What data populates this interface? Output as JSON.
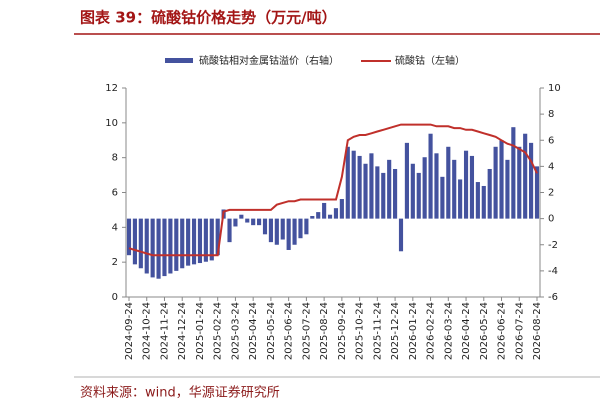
{
  "chart_data": {
    "type": "bar-line",
    "title": "图表 39：硫酸钴价格走势（万元/吨）",
    "source": "资料来源：wind，华源证券研究所",
    "categories": [
      "2024-09-24",
      null,
      null,
      "2024-10-24",
      null,
      null,
      "2024-11-24",
      null,
      null,
      "2024-12-24",
      null,
      null,
      "2025-01-24",
      null,
      null,
      "2025-02-24",
      null,
      null,
      "2025-03-24",
      null,
      null,
      "2025-04-24",
      null,
      null,
      "2025-05-24",
      null,
      null,
      "2025-06-24",
      null,
      null,
      "2025-07-24",
      null,
      null,
      "2025-08-24",
      null,
      null,
      "2025-09-24",
      null,
      null,
      "2025-10-24",
      null,
      null,
      "2025-11-24",
      null,
      null,
      "2025-12-24",
      null,
      null,
      "2026-01-24",
      null,
      null,
      "2026-02-24",
      null,
      null,
      "2026-03-24",
      null,
      null,
      "2026-04-24",
      null,
      null,
      "2026-05-24",
      null,
      null,
      "2026-06-24",
      null,
      null,
      "2026-07-24",
      null,
      null,
      "2026-08-24"
    ],
    "series": [
      {
        "name": "硫酸钴相对金属钴溢价（右轴）",
        "type": "bar",
        "axis": "y2",
        "color": "#44529e",
        "values": [
          -2.8,
          -3.5,
          -3.8,
          -4.2,
          -4.5,
          -4.6,
          -4.4,
          -4.2,
          -4.0,
          -3.8,
          -3.6,
          -3.5,
          -3.4,
          -3.3,
          -3.2,
          -2.8,
          0.7,
          -1.8,
          -0.6,
          0.3,
          -0.3,
          -0.5,
          -0.5,
          -1.2,
          -1.8,
          -2.0,
          -1.6,
          -2.4,
          -2.0,
          -1.5,
          -1.2,
          0.2,
          0.5,
          1.2,
          0.3,
          0.8,
          1.5,
          5.5,
          5.2,
          4.8,
          4.2,
          5.0,
          4.0,
          3.5,
          4.5,
          3.8,
          -2.5,
          5.8,
          4.2,
          3.5,
          4.7,
          6.5,
          5.0,
          3.2,
          5.5,
          4.5,
          3.0,
          5.2,
          4.8,
          2.8,
          2.5,
          3.8,
          5.5,
          6.0,
          4.5,
          7.0,
          5.5,
          6.5,
          5.8,
          4.0
        ]
      },
      {
        "name": "硫酸钴（左轴）",
        "type": "line",
        "axis": "y",
        "color": "#c0302b",
        "values": [
          2.8,
          2.7,
          2.6,
          2.5,
          2.4,
          2.4,
          2.4,
          2.4,
          2.4,
          2.4,
          2.4,
          2.4,
          2.4,
          2.4,
          2.4,
          2.4,
          4.9,
          5.0,
          5.0,
          5.0,
          5.0,
          5.0,
          5.0,
          5.0,
          5.0,
          5.3,
          5.4,
          5.5,
          5.5,
          5.6,
          5.6,
          5.6,
          5.6,
          5.6,
          5.6,
          5.6,
          6.9,
          9.0,
          9.2,
          9.3,
          9.3,
          9.4,
          9.5,
          9.6,
          9.7,
          9.8,
          9.9,
          9.9,
          9.9,
          9.9,
          9.9,
          9.9,
          9.8,
          9.8,
          9.8,
          9.7,
          9.7,
          9.6,
          9.6,
          9.5,
          9.4,
          9.3,
          9.2,
          9.0,
          8.8,
          8.7,
          8.5,
          8.3,
          7.8,
          7.1
        ]
      }
    ],
    "ylim": [
      0,
      12
    ],
    "yticks": [
      0,
      2,
      4,
      6,
      8,
      10,
      12
    ],
    "y2lim": [
      -6,
      10
    ],
    "y2ticks": [
      -6,
      -4,
      -2,
      0,
      2,
      4,
      6,
      8,
      10
    ]
  }
}
